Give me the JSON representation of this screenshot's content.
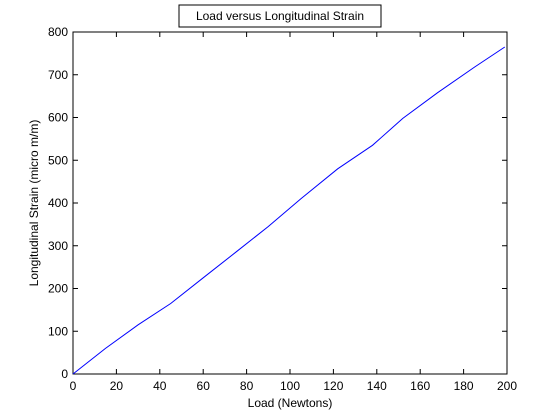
{
  "chart_data": {
    "type": "line",
    "title": "Load versus Longitudinal Strain",
    "xlabel": "Load (Newtons)",
    "ylabel": "Longitudinal Strain (micro m/m)",
    "xlim": [
      0,
      200
    ],
    "ylim": [
      0,
      800
    ],
    "xticks": [
      0,
      20,
      40,
      60,
      80,
      100,
      120,
      140,
      160,
      180,
      200
    ],
    "yticks": [
      0,
      100,
      200,
      300,
      400,
      500,
      600,
      700,
      800
    ],
    "grid": false,
    "series": [
      {
        "color": "#0000ff",
        "x": [
          0,
          15,
          30,
          45,
          60,
          75,
          90,
          105,
          122,
          138,
          152,
          168,
          185,
          199
        ],
        "y": [
          0,
          60,
          115,
          165,
          225,
          285,
          345,
          410,
          480,
          535,
          598,
          658,
          718,
          765
        ]
      }
    ]
  }
}
